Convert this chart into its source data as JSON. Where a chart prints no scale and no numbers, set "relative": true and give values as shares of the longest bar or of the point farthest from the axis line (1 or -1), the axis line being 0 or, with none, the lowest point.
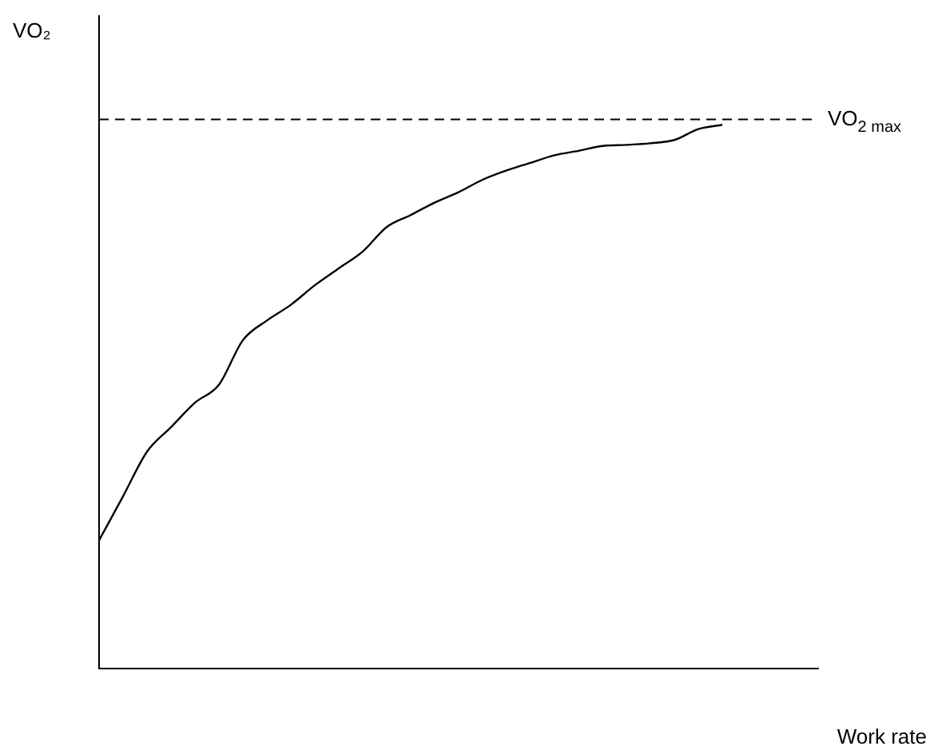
{
  "chart_data": {
    "type": "line",
    "relative": true,
    "xlabel": "Work rate",
    "ylabel": "VO₂",
    "marker": "none",
    "color": "#000000",
    "categories": [
      null,
      null,
      null,
      null,
      null,
      null,
      null,
      null,
      null,
      null,
      null,
      null,
      null,
      null,
      null,
      null,
      null,
      null,
      null,
      null,
      null,
      null,
      null,
      null,
      null,
      null,
      null,
      null,
      null,
      null,
      null
    ],
    "values": [
      0.236,
      0.317,
      0.399,
      0.444,
      0.489,
      0.522,
      0.604,
      0.64,
      0.669,
      0.705,
      0.736,
      0.767,
      0.812,
      0.834,
      0.857,
      0.876,
      0.899,
      0.916,
      0.93,
      0.944,
      0.952,
      0.961,
      0.963,
      0.966,
      0.972,
      0.992,
      1,
      null,
      null,
      null,
      null
    ],
    "ref_lines": [
      {
        "axis": "y",
        "value": 1.01,
        "label": "VO$_{2 max}$",
        "line_style": "dashed",
        "color": "#000000"
      }
    ]
  }
}
